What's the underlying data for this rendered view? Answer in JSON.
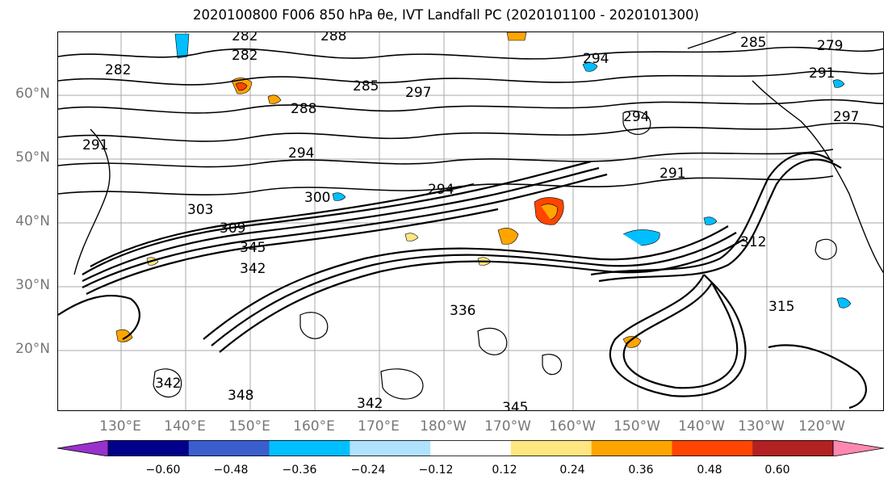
{
  "title": "2020100800 F006 850 hPa θe, IVT Landfall PC (2020101100 - 2020101300)",
  "map": {
    "lat_labels": [
      "60°N",
      "50°N",
      "40°N",
      "30°N",
      "20°N"
    ],
    "lon_labels": [
      "130°E",
      "140°E",
      "150°E",
      "160°E",
      "170°E",
      "180°W",
      "170°W",
      "160°W",
      "150°W",
      "140°W",
      "130°W",
      "120°W"
    ],
    "contour_labels": [
      "282",
      "282",
      "288",
      "285",
      "288",
      "291",
      "294",
      "297",
      "294",
      "291",
      "294",
      "300",
      "303",
      "309",
      "342",
      "345",
      "336",
      "342",
      "345",
      "312",
      "315",
      "297",
      "291",
      "294",
      "285",
      "279",
      "282",
      "342",
      "348"
    ],
    "colors": {
      "contour": "#000000",
      "grid": "#aaaaaa",
      "land": "#000000"
    }
  },
  "colorbar": {
    "tick_labels": [
      "−0.60",
      "−0.48",
      "−0.36",
      "−0.24",
      "−0.12",
      "0.12",
      "0.24",
      "0.36",
      "0.48",
      "0.60"
    ],
    "colors": [
      "#9932cc",
      "#00008b",
      "#3a5fcd",
      "#00bfff",
      "#b0e2ff",
      "#ffffff",
      "#ffe680",
      "#ffa500",
      "#ff4500",
      "#b22222",
      "#ff88b0"
    ]
  }
}
